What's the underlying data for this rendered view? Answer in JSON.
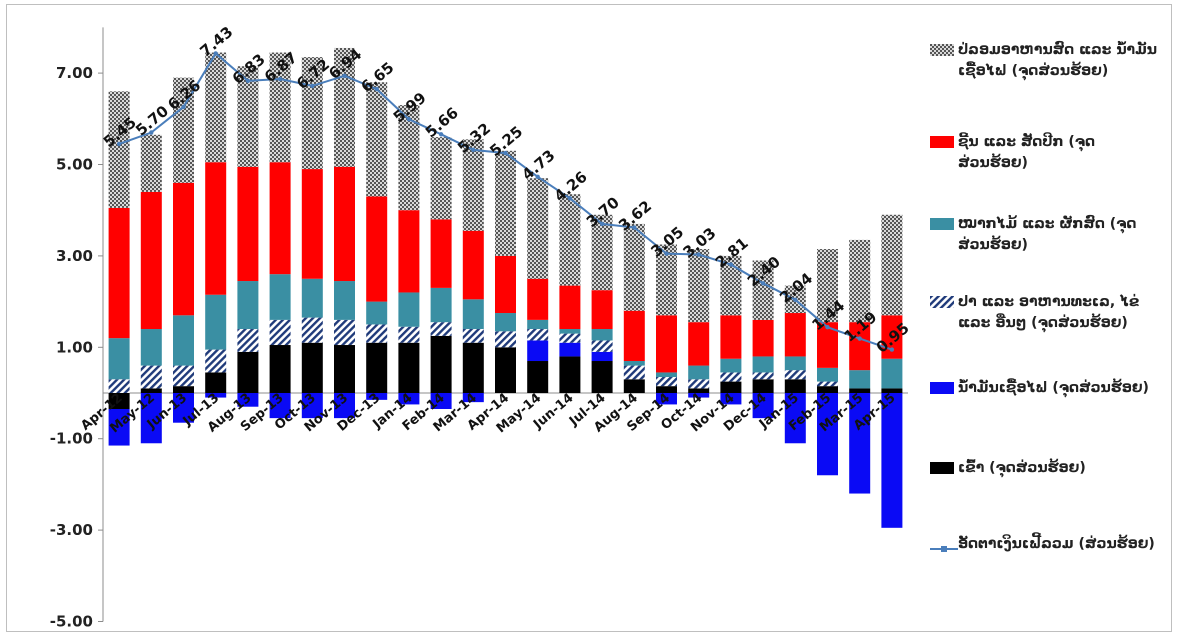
{
  "chart_data": {
    "type": "bar",
    "stacked": true,
    "categories": [
      "Apr-12",
      "May-12",
      "Jun-13",
      "Jul-13",
      "Aug-13",
      "Sep-13",
      "Oct-13",
      "Nov-13",
      "Dec-13",
      "Jan-14",
      "Feb-14",
      "Mar-14",
      "Apr-14",
      "May-14",
      "Jun-14",
      "Jul-14",
      "Aug-14",
      "Sep-14",
      "Oct-14",
      "Nov-14",
      "Dec-14",
      "Jan-15",
      "Feb-15",
      "Mar-15",
      "Apr-15"
    ],
    "ylim": [
      -5,
      8
    ],
    "yticks": [
      7.0,
      5.0,
      3.0,
      1.0,
      -1.0,
      -3.0,
      -5.0
    ],
    "ytick_labels": [
      "7.00",
      "5.00",
      "3.00",
      "1.00",
      "-1.00",
      "-3.00",
      "-5.00"
    ],
    "grid": false,
    "legend_position": "right",
    "colors": {
      "rice": "#000000",
      "fuel": "#0a0af5",
      "fish": "#1f3a7a",
      "veg": "#3a8fa3",
      "meat": "#ff0000",
      "other": "#7a7a7a",
      "line": "#4a7ebb"
    },
    "series": [
      {
        "key": "rice",
        "name": "ເຂົ້າ (ຈຸດສ່ວນຮ້ອຍ)",
        "style": "solid",
        "values": [
          -0.35,
          0.1,
          0.15,
          0.45,
          0.9,
          1.05,
          1.1,
          1.05,
          1.1,
          1.1,
          1.25,
          1.1,
          1.0,
          0.7,
          0.8,
          0.7,
          0.3,
          0.15,
          0.1,
          0.25,
          0.3,
          0.3,
          0.15,
          0.1,
          0.1
        ]
      },
      {
        "key": "fuel",
        "name": "ນ້ຳມັນເຊື້ອໄຟ (ຈຸດສ່ວນຮ້ອຍ)",
        "style": "solid",
        "values": [
          -0.8,
          -1.1,
          -0.65,
          -0.1,
          -0.3,
          -0.55,
          -0.55,
          -0.55,
          -0.15,
          -0.25,
          -0.35,
          -0.2,
          0.0,
          0.45,
          0.3,
          0.2,
          0.0,
          -0.25,
          -0.1,
          -0.25,
          -0.55,
          -1.1,
          -1.8,
          -2.2,
          -2.95
        ]
      },
      {
        "key": "fish",
        "name": "ປາ ແລະ ອາຫານທະເລ, ໄຂ່ ແລະ ອື່ນໆ (ຈຸດສ່ວນຮ້ອຍ)",
        "style": "hatch",
        "values": [
          0.3,
          0.5,
          0.45,
          0.5,
          0.5,
          0.55,
          0.55,
          0.55,
          0.4,
          0.35,
          0.3,
          0.3,
          0.35,
          0.25,
          0.2,
          0.25,
          0.3,
          0.2,
          0.2,
          0.2,
          0.15,
          0.2,
          0.1,
          0.0,
          0.0
        ]
      },
      {
        "key": "veg",
        "name": "ໝາກໄມ້ ແລະ ຜັກສົດ (ຈຸດສ່ວນຮ້ອຍ)",
        "style": "solid",
        "values": [
          0.9,
          0.8,
          1.1,
          1.2,
          1.05,
          1.0,
          0.85,
          0.85,
          0.5,
          0.75,
          0.75,
          0.65,
          0.4,
          0.2,
          0.1,
          0.25,
          0.1,
          0.1,
          0.3,
          0.3,
          0.35,
          0.3,
          0.3,
          0.4,
          0.65
        ]
      },
      {
        "key": "meat",
        "name": "ຊີ້ນ ແລະ ສັດປີກ (ຈຸດສ່ວນຮ້ອຍ)",
        "style": "solid",
        "values": [
          2.85,
          3.0,
          2.9,
          2.9,
          2.5,
          2.45,
          2.4,
          2.5,
          2.3,
          1.8,
          1.5,
          1.5,
          1.25,
          0.9,
          0.95,
          0.85,
          1.1,
          1.25,
          0.95,
          0.95,
          0.8,
          0.95,
          1.0,
          1.05,
          0.95
        ]
      },
      {
        "key": "other",
        "name": "ປ່ລອມອາຫານສົດ ແລະ ນ້ຳມັນເຊື້ອໄຟ (ຈຸດສ່ວນຮ້ອຍ)",
        "style": "pattern",
        "values": [
          2.55,
          1.25,
          2.3,
          2.4,
          2.2,
          2.4,
          2.45,
          2.6,
          2.5,
          2.3,
          1.8,
          2.0,
          2.3,
          2.2,
          2.0,
          1.65,
          1.9,
          1.55,
          1.6,
          1.3,
          1.3,
          0.6,
          1.6,
          1.8,
          2.2
        ]
      }
    ],
    "line": {
      "name": "ອັດຕາເງິນເຟີ້ລວມ (ສ່ວນຮ້ອຍ)",
      "values": [
        5.45,
        5.7,
        6.26,
        7.43,
        6.83,
        6.87,
        6.72,
        6.94,
        6.65,
        5.99,
        5.66,
        5.32,
        5.25,
        4.73,
        4.26,
        3.7,
        3.62,
        3.05,
        3.03,
        2.81,
        2.4,
        2.04,
        1.44,
        1.19,
        0.95
      ],
      "labels": [
        "5.45",
        "5.70",
        "6.26",
        "7.43",
        "6.83",
        "6.87",
        "6.72",
        "6.94",
        "6.65",
        "5.99",
        "5.66",
        "5.32",
        "5.25",
        "4.73",
        "4.26",
        "3.70",
        "3.62",
        "3.05",
        "3.03",
        "2.81",
        "2.40",
        "2.04",
        "1.44",
        "1.19",
        "0.95"
      ]
    }
  },
  "legend": [
    {
      "key": "other",
      "label": "ປ່ລອມອາຫານສົດ ແລະ ນ້ຳມັນເຊື້ອໄຟ (ຈຸດສ່ວນຮ້ອຍ)"
    },
    {
      "key": "meat",
      "label": "ຊີ້ນ ແລະ ສັດປີກ (ຈຸດສ່ວນຮ້ອຍ)"
    },
    {
      "key": "veg",
      "label": "ໝາກໄມ້ ແລະ ຜັກສົດ (ຈຸດສ່ວນຮ້ອຍ)"
    },
    {
      "key": "fish",
      "label": "ປາ ແລະ ອາຫານທະເລ, ໄຂ່ ແລະ ອື່ນໆ (ຈຸດສ່ວນຮ້ອຍ)"
    },
    {
      "key": "fuel",
      "label": "ນ້ຳມັນເຊື້ອໄຟ (ຈຸດສ່ວນຮ້ອຍ)"
    },
    {
      "key": "rice",
      "label": "ເຂົ້າ (ຈຸດສ່ວນຮ້ອຍ)"
    },
    {
      "key": "line",
      "label": "ອັດຕາເງິນເຟີ້ລວມ (ສ່ວນຮ້ອຍ)"
    }
  ]
}
